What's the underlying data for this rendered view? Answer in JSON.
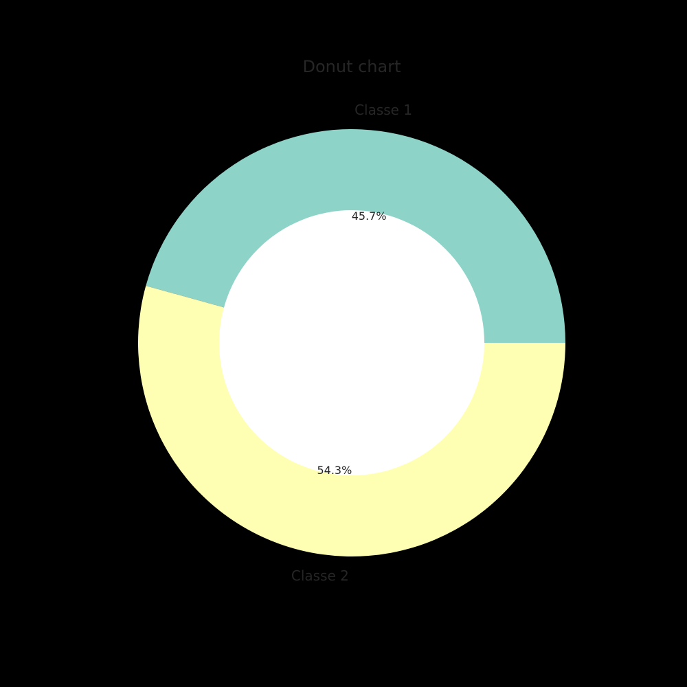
{
  "chart_data": {
    "type": "pie",
    "title": "Donut chart",
    "labels": [
      "Classe 1",
      "Classe 2"
    ],
    "values": [
      45.7,
      54.3
    ],
    "percent_labels": [
      "45.7%",
      "54.3%"
    ],
    "colors": [
      "#8dd3c7",
      "#ffffb3"
    ],
    "hole_color": "#ffffff",
    "background": "#000000",
    "start_angle_deg": 0,
    "direction": "counterclockwise"
  }
}
